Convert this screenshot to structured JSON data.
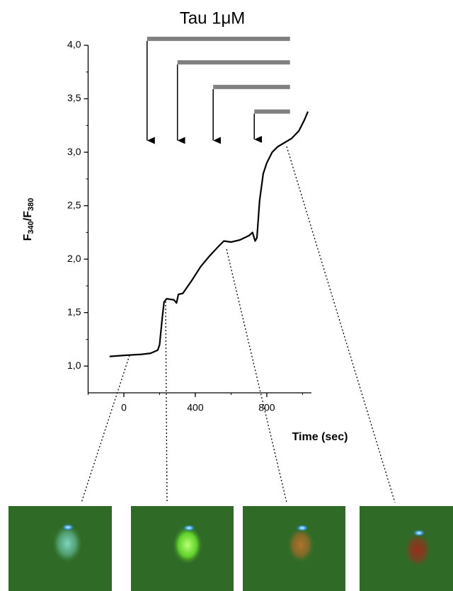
{
  "chart_data": {
    "type": "line",
    "title": "Tau 1μM",
    "x_label": "Time (sec)",
    "y_label": [
      "F",
      "340",
      "/F",
      "380"
    ],
    "xlim": [
      -200,
      1050
    ],
    "xticks": [
      0,
      400,
      800
    ],
    "x_minor_ticks": [
      -200,
      200,
      600,
      1000
    ],
    "ylim": [
      0.75,
      4.0
    ],
    "yticks": [
      {
        "value": 1.0,
        "label": "1,0"
      },
      {
        "value": 1.5,
        "label": "1,5"
      },
      {
        "value": 2.0,
        "label": "2,0"
      },
      {
        "value": 2.5,
        "label": "2,5"
      },
      {
        "value": 3.0,
        "label": "3,0"
      },
      {
        "value": 3.5,
        "label": "3,5"
      },
      {
        "value": 4.0,
        "label": "4,0"
      }
    ],
    "y_minor_ticks": [
      1.25,
      1.75,
      2.25,
      2.75,
      3.25,
      3.75
    ],
    "series": [
      {
        "color": "#000000",
        "x": [
          -80,
          0,
          100,
          150,
          190,
          200,
          215,
          225,
          240,
          280,
          295,
          305,
          330,
          380,
          430,
          480,
          530,
          560,
          600,
          650,
          700,
          720,
          735,
          745,
          760,
          780,
          800,
          830,
          860,
          900,
          940,
          980,
          1010,
          1030
        ],
        "values": [
          1.09,
          1.1,
          1.11,
          1.12,
          1.15,
          1.2,
          1.45,
          1.6,
          1.63,
          1.62,
          1.59,
          1.67,
          1.68,
          1.8,
          1.93,
          2.03,
          2.12,
          2.17,
          2.16,
          2.18,
          2.22,
          2.25,
          2.17,
          2.2,
          2.55,
          2.8,
          2.9,
          3.0,
          3.05,
          3.09,
          3.13,
          3.2,
          3.3,
          3.38
        ]
      }
    ],
    "treatments": [
      {
        "start": 130,
        "end": 930,
        "level": 4.06,
        "arrow_to": 3.11
      },
      {
        "start": 300,
        "end": 930,
        "level": 3.84,
        "arrow_to": 3.11
      },
      {
        "start": 500,
        "end": 930,
        "level": 3.61,
        "arrow_to": 3.11
      },
      {
        "start": 730,
        "end": 930,
        "level": 3.38,
        "arrow_to": 3.12
      }
    ],
    "treatment_color": "#808080"
  }
}
